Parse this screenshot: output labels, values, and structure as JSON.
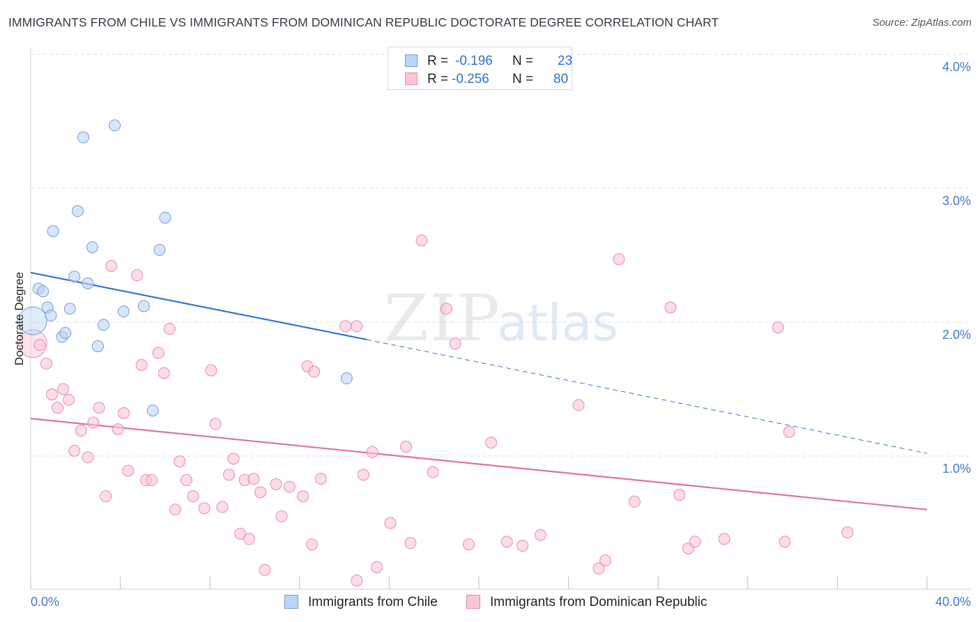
{
  "header": {
    "title": "IMMIGRANTS FROM CHILE VS IMMIGRANTS FROM DOMINICAN REPUBLIC DOCTORATE DEGREE CORRELATION CHART",
    "source": "Source: ZipAtlas.com"
  },
  "watermark": {
    "zip": "ZIP",
    "atlas": "atlas"
  },
  "colors": {
    "chile_fill": "#bcd4f5",
    "chile_stroke": "#6f9fdc",
    "chile_line": "#3573d4",
    "dr_fill": "#f8c6d6",
    "dr_stroke": "#e98aa9",
    "dr_line": "#e3709a",
    "grid": "#dddddd",
    "tick_label": "#3d79d2"
  },
  "legend": {
    "chile": {
      "r_label": "R =",
      "r_value": "-0.196",
      "n_label": "N =",
      "n_value": "23"
    },
    "dr": {
      "r_label": "R =",
      "r_value": "-0.256",
      "n_label": "N =",
      "n_value": "80"
    }
  },
  "bottom_legend": {
    "chile": "Immigrants from Chile",
    "dr": "Immigrants from Dominican Republic"
  },
  "chart_data": {
    "type": "scatter",
    "title": "IMMIGRANTS FROM CHILE VS IMMIGRANTS FROM DOMINICAN REPUBLIC DOCTORATE DEGREE CORRELATION CHART",
    "xlabel": "",
    "ylabel": "Doctorate Degree",
    "xlim": [
      0,
      40
    ],
    "ylim": [
      0,
      4.1
    ],
    "x_tick_labels": [
      "0.0%",
      "40.0%"
    ],
    "y_ticks": [
      1,
      2,
      3,
      4
    ],
    "y_tick_labels": [
      "1.0%",
      "2.0%",
      "3.0%",
      "4.0%"
    ],
    "grid": true,
    "series": [
      {
        "name": "Immigrants from Chile",
        "points": [
          {
            "x": 0.1,
            "y": 2.01,
            "big": true
          },
          {
            "x": 0.35,
            "y": 2.25
          },
          {
            "x": 0.55,
            "y": 2.23
          },
          {
            "x": 0.75,
            "y": 2.11
          },
          {
            "x": 0.9,
            "y": 2.05
          },
          {
            "x": 1.0,
            "y": 2.68
          },
          {
            "x": 1.4,
            "y": 1.89
          },
          {
            "x": 1.55,
            "y": 1.92
          },
          {
            "x": 1.75,
            "y": 2.1
          },
          {
            "x": 1.95,
            "y": 2.34
          },
          {
            "x": 2.1,
            "y": 2.83
          },
          {
            "x": 2.35,
            "y": 3.38
          },
          {
            "x": 2.55,
            "y": 2.29
          },
          {
            "x": 2.75,
            "y": 2.56
          },
          {
            "x": 3.0,
            "y": 1.82
          },
          {
            "x": 3.25,
            "y": 1.98
          },
          {
            "x": 3.75,
            "y": 3.47
          },
          {
            "x": 4.15,
            "y": 2.08
          },
          {
            "x": 5.05,
            "y": 2.12
          },
          {
            "x": 5.45,
            "y": 1.34
          },
          {
            "x": 5.75,
            "y": 2.54
          },
          {
            "x": 6.0,
            "y": 2.78
          },
          {
            "x": 14.1,
            "y": 1.58
          }
        ],
        "trend": {
          "x0": 0,
          "y0": 2.37,
          "x1": 15,
          "y1": 1.87,
          "dash_to_x": 40,
          "dash_to_y": 1.02
        }
      },
      {
        "name": "Immigrants from Dominican Republic",
        "points": [
          {
            "x": 0.1,
            "y": 1.84,
            "big": true
          },
          {
            "x": 0.4,
            "y": 1.83
          },
          {
            "x": 0.7,
            "y": 1.69
          },
          {
            "x": 0.95,
            "y": 1.46
          },
          {
            "x": 1.2,
            "y": 1.36
          },
          {
            "x": 1.45,
            "y": 1.5
          },
          {
            "x": 1.7,
            "y": 1.42
          },
          {
            "x": 1.95,
            "y": 1.04
          },
          {
            "x": 2.25,
            "y": 1.19
          },
          {
            "x": 2.55,
            "y": 0.99
          },
          {
            "x": 2.8,
            "y": 1.25
          },
          {
            "x": 3.05,
            "y": 1.36
          },
          {
            "x": 3.35,
            "y": 0.7
          },
          {
            "x": 3.6,
            "y": 2.42
          },
          {
            "x": 3.9,
            "y": 1.2
          },
          {
            "x": 4.15,
            "y": 1.32
          },
          {
            "x": 4.35,
            "y": 0.89
          },
          {
            "x": 4.75,
            "y": 2.35
          },
          {
            "x": 4.95,
            "y": 1.68
          },
          {
            "x": 5.15,
            "y": 0.82
          },
          {
            "x": 5.4,
            "y": 0.82
          },
          {
            "x": 5.7,
            "y": 1.77
          },
          {
            "x": 5.95,
            "y": 1.62
          },
          {
            "x": 6.2,
            "y": 1.95
          },
          {
            "x": 6.45,
            "y": 0.6
          },
          {
            "x": 6.65,
            "y": 0.96
          },
          {
            "x": 6.95,
            "y": 0.82
          },
          {
            "x": 7.25,
            "y": 0.7
          },
          {
            "x": 7.75,
            "y": 0.61
          },
          {
            "x": 8.05,
            "y": 1.64
          },
          {
            "x": 8.25,
            "y": 1.24
          },
          {
            "x": 8.55,
            "y": 0.62
          },
          {
            "x": 8.85,
            "y": 0.86
          },
          {
            "x": 9.05,
            "y": 0.98
          },
          {
            "x": 9.35,
            "y": 0.42
          },
          {
            "x": 9.55,
            "y": 0.82
          },
          {
            "x": 9.75,
            "y": 0.38
          },
          {
            "x": 9.95,
            "y": 0.83
          },
          {
            "x": 10.25,
            "y": 0.73
          },
          {
            "x": 10.45,
            "y": 0.15
          },
          {
            "x": 10.95,
            "y": 0.79
          },
          {
            "x": 11.2,
            "y": 0.55
          },
          {
            "x": 11.55,
            "y": 0.77
          },
          {
            "x": 12.15,
            "y": 0.7
          },
          {
            "x": 12.35,
            "y": 1.67
          },
          {
            "x": 12.55,
            "y": 0.34
          },
          {
            "x": 12.65,
            "y": 1.63
          },
          {
            "x": 12.95,
            "y": 0.83
          },
          {
            "x": 14.05,
            "y": 1.97
          },
          {
            "x": 14.55,
            "y": 1.97
          },
          {
            "x": 14.55,
            "y": 0.07
          },
          {
            "x": 14.85,
            "y": 0.86
          },
          {
            "x": 15.25,
            "y": 1.03
          },
          {
            "x": 15.45,
            "y": 0.17
          },
          {
            "x": 16.05,
            "y": 0.5
          },
          {
            "x": 16.75,
            "y": 1.07
          },
          {
            "x": 16.95,
            "y": 0.35
          },
          {
            "x": 17.45,
            "y": 2.61
          },
          {
            "x": 17.95,
            "y": 0.88
          },
          {
            "x": 18.55,
            "y": 2.1
          },
          {
            "x": 18.95,
            "y": 1.84
          },
          {
            "x": 19.55,
            "y": 0.34
          },
          {
            "x": 20.55,
            "y": 1.1
          },
          {
            "x": 21.25,
            "y": 0.36
          },
          {
            "x": 21.95,
            "y": 0.33
          },
          {
            "x": 22.75,
            "y": 0.41
          },
          {
            "x": 24.45,
            "y": 1.38
          },
          {
            "x": 25.35,
            "y": 0.16
          },
          {
            "x": 25.65,
            "y": 0.22
          },
          {
            "x": 26.25,
            "y": 2.47
          },
          {
            "x": 26.95,
            "y": 0.66
          },
          {
            "x": 28.55,
            "y": 2.11
          },
          {
            "x": 28.95,
            "y": 0.71
          },
          {
            "x": 29.35,
            "y": 0.31
          },
          {
            "x": 29.65,
            "y": 0.36
          },
          {
            "x": 30.95,
            "y": 0.38
          },
          {
            "x": 33.35,
            "y": 1.96
          },
          {
            "x": 33.65,
            "y": 0.36
          },
          {
            "x": 33.85,
            "y": 1.18
          },
          {
            "x": 36.45,
            "y": 0.43
          }
        ],
        "trend": {
          "x0": 0,
          "y0": 1.28,
          "x1": 40,
          "y1": 0.6
        }
      }
    ]
  }
}
